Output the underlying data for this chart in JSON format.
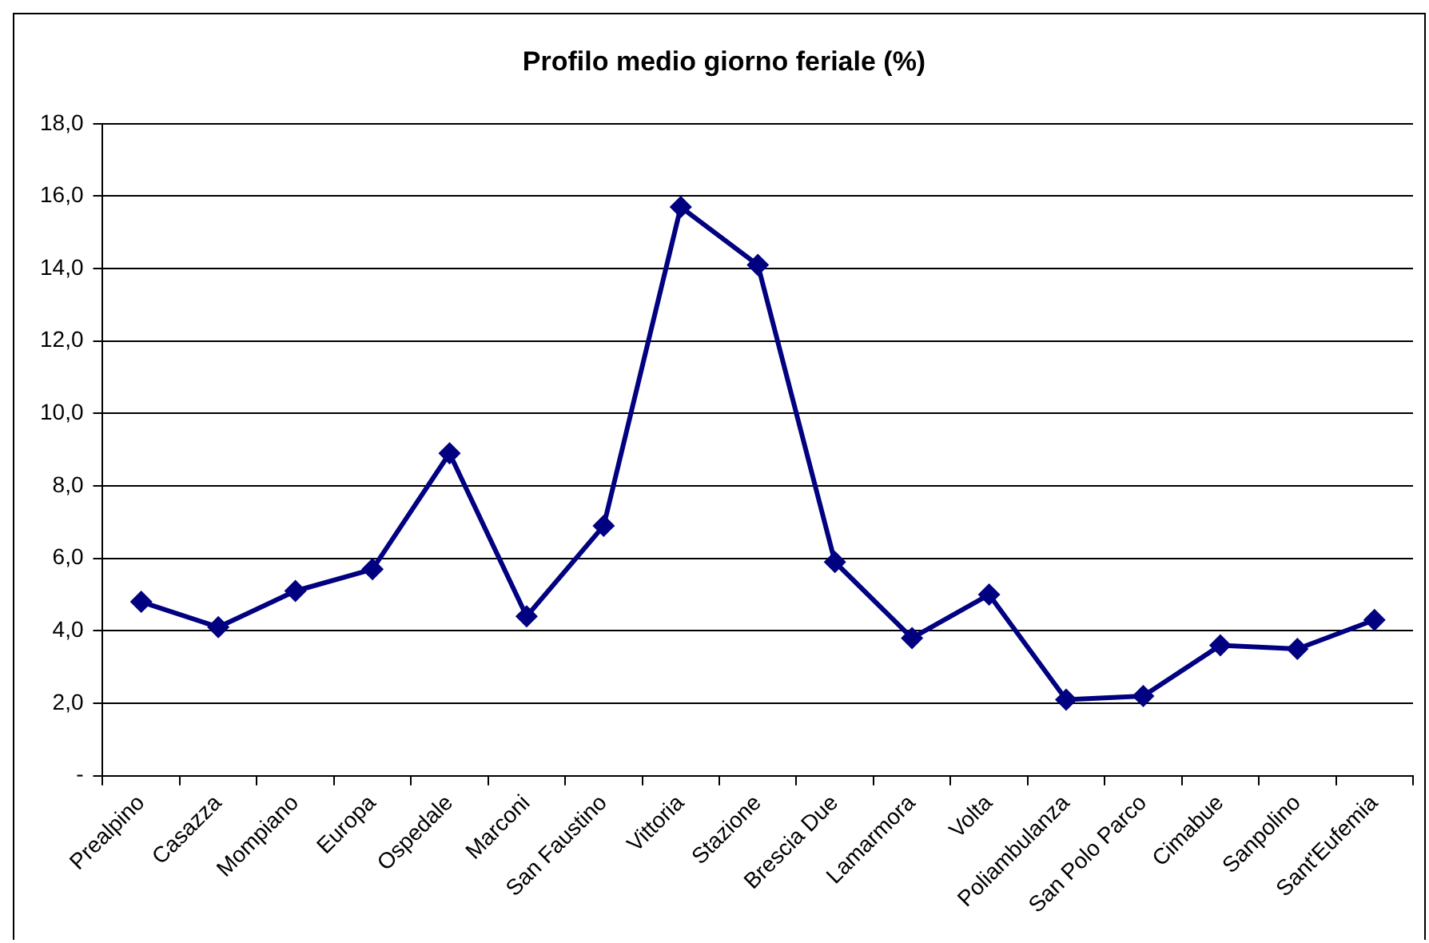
{
  "chart_data": {
    "type": "line",
    "title": "Profilo medio giorno feriale (%)",
    "categories": [
      "Prealpino",
      "Casazza",
      "Mompiano",
      "Europa",
      "Ospedale",
      "Marconi",
      "San Faustino",
      "Vittoria",
      "Stazione",
      "Brescia Due",
      "Lamarmora",
      "Volta",
      "Poliambulanza",
      "San Polo Parco",
      "Cimabue",
      "Sanpolino",
      "Sant'Eufemia"
    ],
    "series": [
      {
        "color": "#000080",
        "values": [
          4.8,
          4.1,
          5.1,
          5.7,
          8.9,
          4.4,
          6.9,
          15.7,
          14.1,
          5.9,
          3.8,
          5.0,
          2.1,
          2.2,
          3.6,
          3.5,
          4.3
        ]
      }
    ],
    "ylim": [
      0,
      18
    ],
    "yticks": [
      {
        "value": 0,
        "label": "-"
      },
      {
        "value": 2,
        "label": "2,0"
      },
      {
        "value": 4,
        "label": "4,0"
      },
      {
        "value": 6,
        "label": "6,0"
      },
      {
        "value": 8,
        "label": "8,0"
      },
      {
        "value": 10,
        "label": "10,0"
      },
      {
        "value": 12,
        "label": "12,0"
      },
      {
        "value": 14,
        "label": "14,0"
      },
      {
        "value": 16,
        "label": "16,0"
      },
      {
        "value": 18,
        "label": "18,0"
      }
    ],
    "grid": "y",
    "legend": false,
    "marker": "diamond",
    "line_style": "solid"
  }
}
